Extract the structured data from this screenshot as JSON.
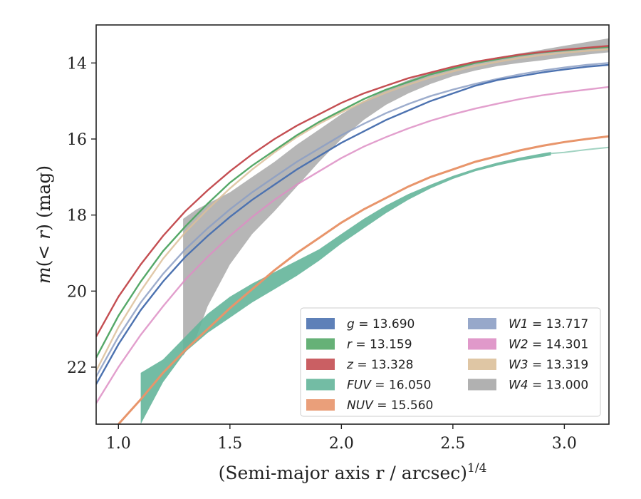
{
  "chart_data": {
    "type": "line",
    "xlabel": "(Semi-major axis r / arcsec)1/4",
    "ylabel": "m(< r) (mag)",
    "xlim": [
      0.9,
      3.2
    ],
    "ylim": [
      23.5,
      13.0
    ],
    "y_inverted": true,
    "xticks": [
      "1.0",
      "1.5",
      "2.0",
      "2.5",
      "3.0"
    ],
    "xtick_values": [
      1.0,
      1.5,
      2.0,
      2.5,
      3.0
    ],
    "yticks": [
      "14",
      "16",
      "18",
      "20",
      "22"
    ],
    "ytick_values": [
      14,
      16,
      18,
      20,
      22
    ],
    "grid": false,
    "legend_position": "lower-right",
    "series": [
      {
        "name": "g = 13.690",
        "legend_text": "g = 13.690",
        "color": "#4c72b0",
        "x": [
          0.9,
          1.0,
          1.1,
          1.2,
          1.3,
          1.4,
          1.5,
          1.6,
          1.7,
          1.8,
          1.9,
          2.0,
          2.1,
          2.2,
          2.3,
          2.4,
          2.5,
          2.6,
          2.7,
          2.8,
          2.9,
          3.0,
          3.1,
          3.2
        ],
        "y": [
          22.45,
          21.4,
          20.5,
          19.75,
          19.1,
          18.55,
          18.05,
          17.6,
          17.2,
          16.8,
          16.45,
          16.1,
          15.8,
          15.5,
          15.25,
          15.0,
          14.8,
          14.6,
          14.45,
          14.35,
          14.25,
          14.17,
          14.1,
          14.05
        ]
      },
      {
        "name": "r = 13.159",
        "legend_text": "r = 13.159",
        "color": "#55a868",
        "x": [
          0.9,
          1.0,
          1.1,
          1.2,
          1.3,
          1.4,
          1.5,
          1.6,
          1.7,
          1.8,
          1.9,
          2.0,
          2.1,
          2.2,
          2.3,
          2.4,
          2.5,
          2.6,
          2.7,
          2.8,
          2.9,
          3.0,
          3.1,
          3.2
        ],
        "y": [
          21.75,
          20.65,
          19.75,
          18.95,
          18.3,
          17.7,
          17.15,
          16.7,
          16.3,
          15.9,
          15.55,
          15.25,
          14.95,
          14.7,
          14.5,
          14.3,
          14.15,
          14.0,
          13.9,
          13.8,
          13.72,
          13.67,
          13.62,
          13.58
        ]
      },
      {
        "name": "z = 13.328",
        "legend_text": "z = 13.328",
        "color": "#c44e52",
        "x": [
          0.9,
          1.0,
          1.1,
          1.2,
          1.3,
          1.4,
          1.5,
          1.6,
          1.7,
          1.8,
          1.9,
          2.0,
          2.1,
          2.2,
          2.3,
          2.4,
          2.5,
          2.6,
          2.7,
          2.8,
          2.9,
          3.0,
          3.1,
          3.2
        ],
        "y": [
          21.2,
          20.15,
          19.3,
          18.55,
          17.9,
          17.35,
          16.85,
          16.4,
          16.0,
          15.65,
          15.35,
          15.05,
          14.8,
          14.6,
          14.4,
          14.25,
          14.1,
          13.97,
          13.87,
          13.78,
          13.71,
          13.65,
          13.6,
          13.55
        ]
      },
      {
        "name": "FUV = 16.050",
        "legend_text": "FUV = 16.050",
        "color": "#64b59a",
        "band": true,
        "x": [
          1.1,
          1.2,
          1.3,
          1.4,
          1.5,
          1.6,
          1.7,
          1.8,
          1.9,
          2.0,
          2.1,
          2.2,
          2.3,
          2.4,
          2.5,
          2.6,
          2.7,
          2.8,
          2.9,
          2.94
        ],
        "y_low": [
          23.5,
          22.4,
          21.6,
          21.1,
          20.7,
          20.3,
          19.95,
          19.6,
          19.2,
          18.75,
          18.35,
          17.95,
          17.6,
          17.3,
          17.05,
          16.85,
          16.7,
          16.57,
          16.47,
          16.43
        ],
        "y_high": [
          22.15,
          21.8,
          21.2,
          20.6,
          20.15,
          19.8,
          19.5,
          19.2,
          18.9,
          18.5,
          18.1,
          17.75,
          17.45,
          17.2,
          16.97,
          16.78,
          16.62,
          16.49,
          16.38,
          16.34
        ],
        "ext_x": [
          2.94,
          3.0,
          3.1,
          3.2
        ],
        "ext_y": [
          16.38,
          16.35,
          16.28,
          16.22
        ]
      },
      {
        "name": "NUV = 15.560",
        "legend_text": "NUV = 15.560",
        "color": "#e8956b",
        "x": [
          1.0,
          1.1,
          1.2,
          1.3,
          1.4,
          1.5,
          1.6,
          1.7,
          1.8,
          1.9,
          2.0,
          2.1,
          2.2,
          2.3,
          2.4,
          2.5,
          2.6,
          2.7,
          2.8,
          2.9,
          3.0,
          3.1,
          3.2
        ],
        "y": [
          23.5,
          22.85,
          22.15,
          21.55,
          21.0,
          20.45,
          19.95,
          19.45,
          19.0,
          18.6,
          18.2,
          17.85,
          17.55,
          17.25,
          17.0,
          16.8,
          16.6,
          16.45,
          16.3,
          16.18,
          16.08,
          16.0,
          15.93
        ]
      },
      {
        "name": "W1 = 13.717",
        "legend_text": "W1 = 13.717",
        "color": "#8c9fc4",
        "x": [
          0.9,
          1.0,
          1.1,
          1.2,
          1.3,
          1.4,
          1.5,
          1.6,
          1.7,
          1.8,
          1.9,
          2.0,
          2.1,
          2.2,
          2.3,
          2.4,
          2.5,
          2.6,
          2.7,
          2.8,
          2.9,
          3.0,
          3.1,
          3.2
        ],
        "y": [
          22.25,
          21.2,
          20.3,
          19.55,
          18.9,
          18.35,
          17.85,
          17.4,
          17.0,
          16.6,
          16.25,
          15.9,
          15.6,
          15.32,
          15.08,
          14.87,
          14.7,
          14.55,
          14.42,
          14.3,
          14.2,
          14.12,
          14.05,
          14.0
        ]
      },
      {
        "name": "W2 = 14.301",
        "legend_text": "W2 = 14.301",
        "color": "#dd8ec4",
        "x": [
          0.9,
          1.0,
          1.1,
          1.2,
          1.3,
          1.4,
          1.5,
          1.6,
          1.7,
          1.8,
          1.9,
          2.0,
          2.1,
          2.2,
          2.3,
          2.4,
          2.5,
          2.6,
          2.7,
          2.8,
          2.9,
          3.0,
          3.1,
          3.2
        ],
        "y": [
          22.95,
          22.0,
          21.15,
          20.4,
          19.7,
          19.1,
          18.55,
          18.05,
          17.6,
          17.2,
          16.85,
          16.5,
          16.2,
          15.95,
          15.72,
          15.52,
          15.35,
          15.2,
          15.07,
          14.95,
          14.85,
          14.77,
          14.7,
          14.63
        ]
      },
      {
        "name": "W3 = 13.319",
        "legend_text": "W3 = 13.319",
        "color": "#dcc09a",
        "x": [
          0.9,
          1.0,
          1.1,
          1.2,
          1.3,
          1.4,
          1.5,
          1.6,
          1.7,
          1.8,
          1.9,
          2.0,
          2.1,
          2.2,
          2.3,
          2.4,
          2.5,
          2.6,
          2.7,
          2.8,
          2.9,
          3.0,
          3.1,
          3.2
        ],
        "y": [
          22.1,
          20.95,
          20.0,
          19.15,
          18.45,
          17.85,
          17.3,
          16.8,
          16.35,
          15.95,
          15.6,
          15.3,
          15.02,
          14.78,
          14.57,
          14.38,
          14.22,
          14.08,
          13.97,
          13.87,
          13.79,
          13.73,
          13.68,
          13.64
        ]
      },
      {
        "name": "W4 = 13.000",
        "legend_text": "W4 = 13.000",
        "color": "#a9a9a9",
        "band": true,
        "x": [
          1.29,
          1.35,
          1.4,
          1.5,
          1.6,
          1.7,
          1.8,
          1.9,
          2.0,
          2.1,
          2.2,
          2.3,
          2.4,
          2.5,
          2.6,
          2.7,
          2.8,
          2.9,
          3.0,
          3.1,
          3.2
        ],
        "y_low": [
          21.7,
          21.2,
          20.4,
          19.3,
          18.5,
          17.9,
          17.25,
          16.6,
          16.0,
          15.5,
          15.1,
          14.8,
          14.55,
          14.35,
          14.2,
          14.08,
          14.0,
          13.93,
          13.85,
          13.78,
          13.72
        ],
        "y_high": [
          18.1,
          17.85,
          17.7,
          17.4,
          17.0,
          16.6,
          16.15,
          15.75,
          15.35,
          15.0,
          14.7,
          14.45,
          14.25,
          14.1,
          13.95,
          13.85,
          13.75,
          13.65,
          13.55,
          13.45,
          13.35
        ]
      }
    ]
  }
}
